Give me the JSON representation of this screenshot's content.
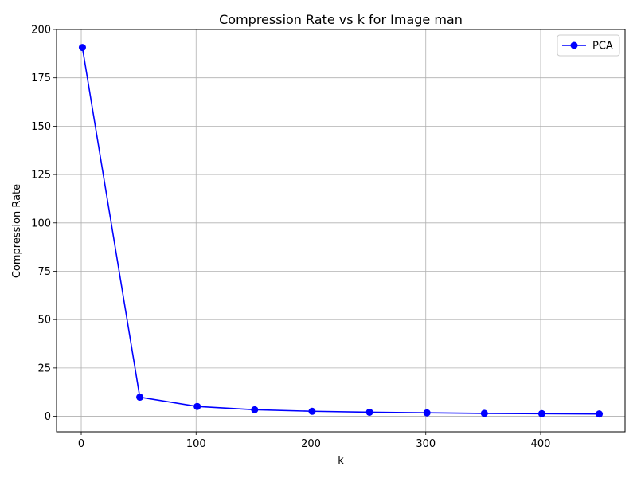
{
  "chart_data": {
    "type": "line",
    "title": "Compression Rate vs k for Image man",
    "xlabel": "k",
    "ylabel": "Compression Rate",
    "xlim": [
      -21.5,
      473.5
    ],
    "ylim": [
      -8,
      200
    ],
    "xticks": [
      0,
      100,
      200,
      300,
      400
    ],
    "yticks": [
      0,
      25,
      50,
      75,
      100,
      125,
      150,
      175,
      200
    ],
    "grid": true,
    "legend_position": "top-right",
    "series": [
      {
        "name": "PCA",
        "color": "#0000ff",
        "marker": "circle",
        "x": [
          1,
          51,
          101,
          151,
          201,
          251,
          301,
          351,
          401,
          451
        ],
        "y": [
          190.7,
          9.9,
          5.1,
          3.4,
          2.6,
          2.1,
          1.8,
          1.5,
          1.35,
          1.2
        ]
      }
    ]
  }
}
